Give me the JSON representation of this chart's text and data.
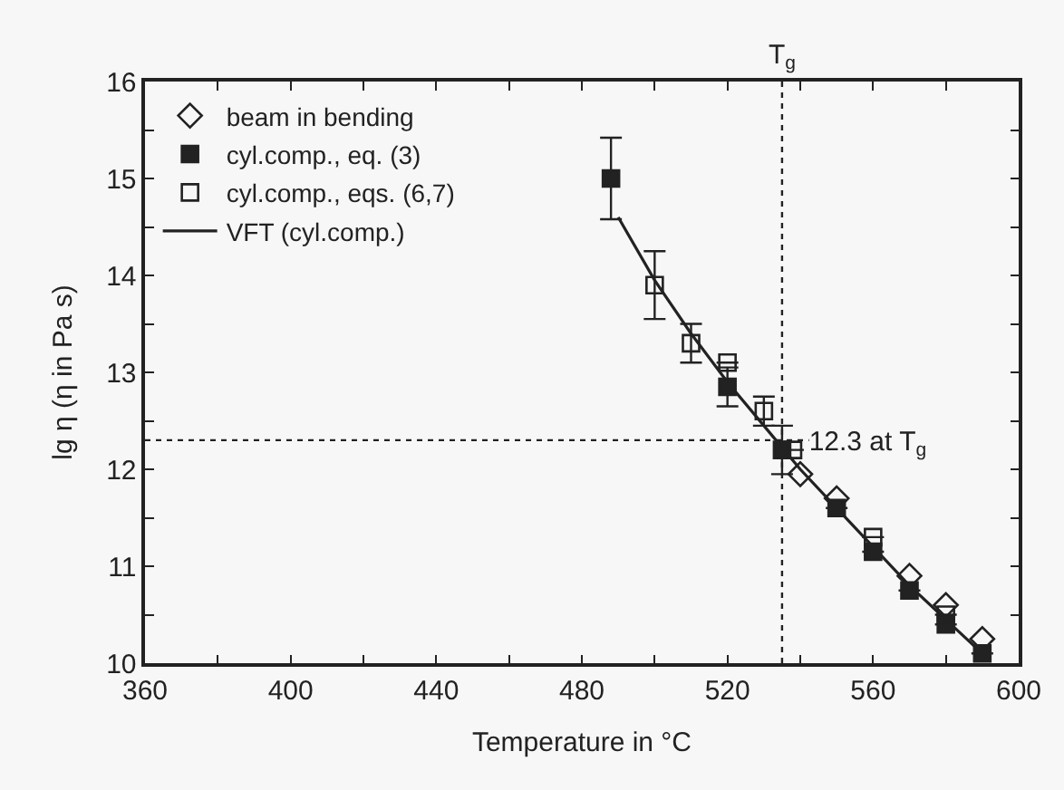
{
  "chart_data": {
    "type": "scatter",
    "xlabel": "Temperature in °C",
    "ylabel": "lg η (η in Pa s)",
    "xlim": [
      360,
      600
    ],
    "ylim": [
      10,
      16
    ],
    "xticks": [
      360,
      {
        "value": 380,
        "label": null
      },
      400,
      {
        "value": 420,
        "label": null
      },
      440,
      {
        "value": 460,
        "label": null
      },
      480,
      {
        "value": 500,
        "label": null
      },
      520,
      {
        "value": 540,
        "label": null
      },
      560,
      {
        "value": 580,
        "label": null
      },
      600
    ],
    "yticks": [
      10,
      {
        "value": 10.5,
        "label": null
      },
      11,
      {
        "value": 11.5,
        "label": null
      },
      12,
      {
        "value": 12.5,
        "label": null
      },
      13,
      {
        "value": 13.5,
        "label": null
      },
      14,
      {
        "value": 14.5,
        "label": null
      },
      15,
      {
        "value": 15.5,
        "label": null
      },
      16
    ],
    "grid": false,
    "legend": "top left",
    "series": [
      {
        "name": "beam in bending",
        "color": "#222222",
        "marker": "diamond",
        "x": [
          540,
          550,
          570,
          580,
          590
        ],
        "values": [
          11.95,
          11.7,
          10.9,
          10.6,
          10.25
        ]
      },
      {
        "name": "cyl.comp., eq. (3)",
        "color": "#222222",
        "marker": "square",
        "x": [
          488,
          520,
          535,
          550,
          560,
          570,
          580,
          590
        ],
        "values": [
          15.0,
          12.85,
          12.2,
          11.6,
          11.15,
          10.75,
          10.4,
          10.1
        ],
        "errors": [
          0.42,
          0.2,
          0.25,
          null,
          null,
          null,
          null,
          null
        ]
      },
      {
        "name": "cyl.comp., eqs. (6,7)",
        "color": "#222222",
        "marker": "square",
        "x": [
          500,
          510,
          520,
          530,
          538,
          560,
          580
        ],
        "values": [
          13.9,
          13.3,
          13.1,
          12.6,
          12.2,
          11.3,
          10.5
        ],
        "errors": [
          0.35,
          0.2,
          null,
          0.15,
          null,
          null,
          null
        ]
      },
      {
        "name": "VFT (cyl.comp.)",
        "type": "line",
        "color": "#222222",
        "marker": "none",
        "x": [
          490,
          500,
          510,
          520,
          530,
          540,
          550,
          560,
          570,
          580,
          590
        ],
        "values": [
          14.6,
          13.95,
          13.4,
          12.9,
          12.45,
          12.0,
          11.6,
          11.2,
          10.8,
          10.45,
          10.1
        ]
      }
    ],
    "ref_lines": [
      {
        "axis": "x",
        "value": 535,
        "label": "T$_{g}$",
        "line_style": "dotted"
      },
      {
        "axis": "y",
        "value": 12.3,
        "label": "12.3 at T$_{g}$",
        "line_style": "dotted"
      }
    ]
  }
}
